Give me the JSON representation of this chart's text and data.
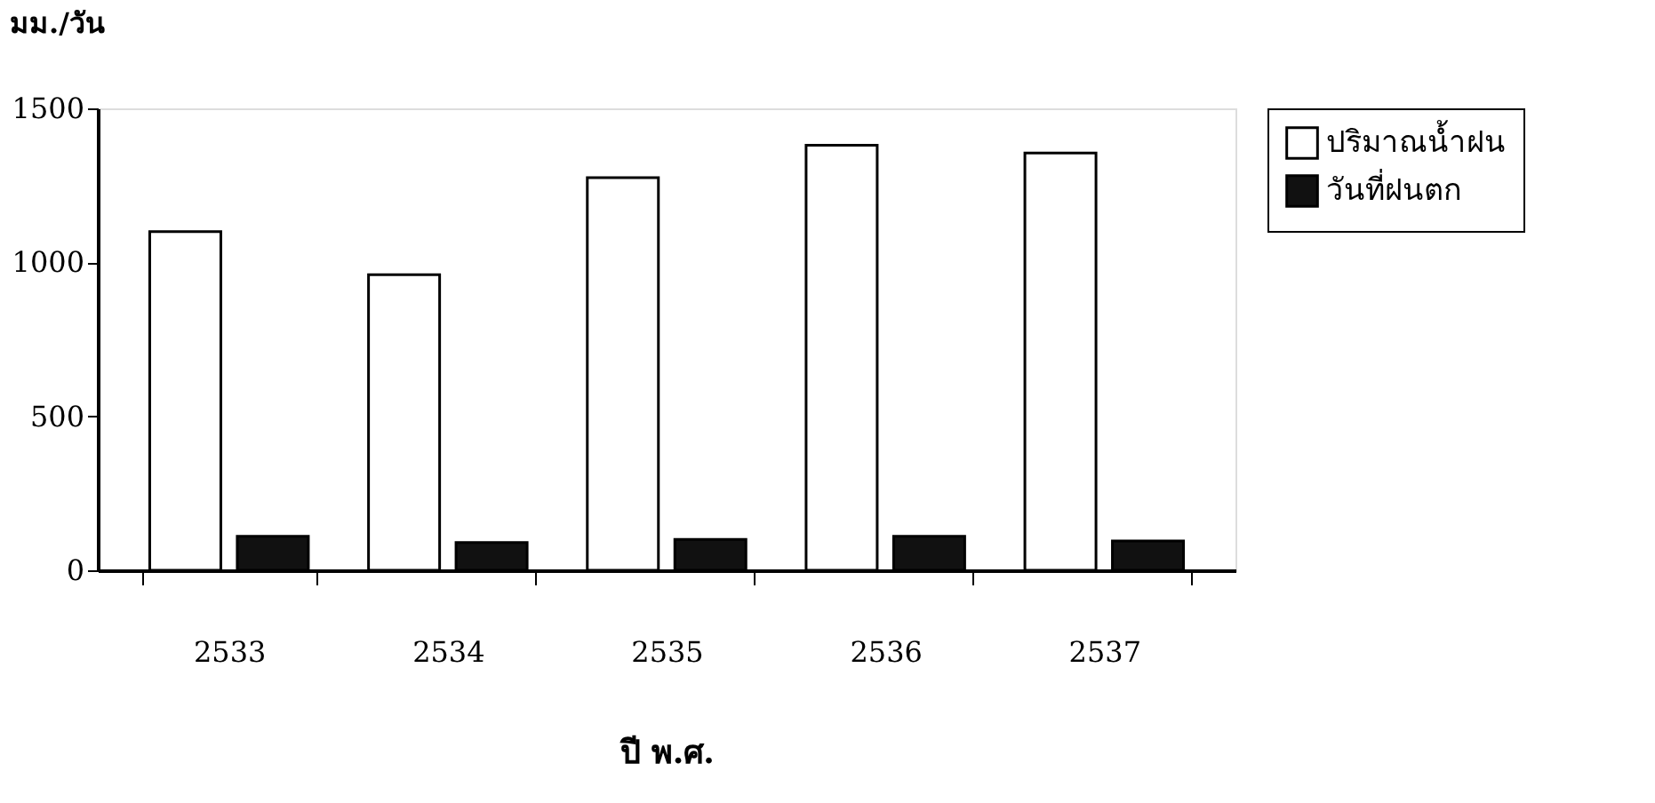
{
  "chart_data": {
    "type": "bar",
    "ylabel": "มม./วัน",
    "xlabel": "ปี  พ.ศ.",
    "categories": [
      "2533",
      "2534",
      "2535",
      "2536",
      "2537"
    ],
    "series": [
      {
        "name": "ปริมาณน้ำฝน",
        "color": "#ffffff",
        "values": [
          1100,
          960,
          1275,
          1380,
          1355
        ]
      },
      {
        "name": "วันที่ฝนตก",
        "color": "#111111",
        "values": [
          110,
          90,
          100,
          110,
          95
        ]
      }
    ],
    "ylim": [
      0,
      1500
    ],
    "yticks": [
      0,
      500,
      1000,
      1500
    ],
    "grid": false,
    "legend": "right"
  }
}
